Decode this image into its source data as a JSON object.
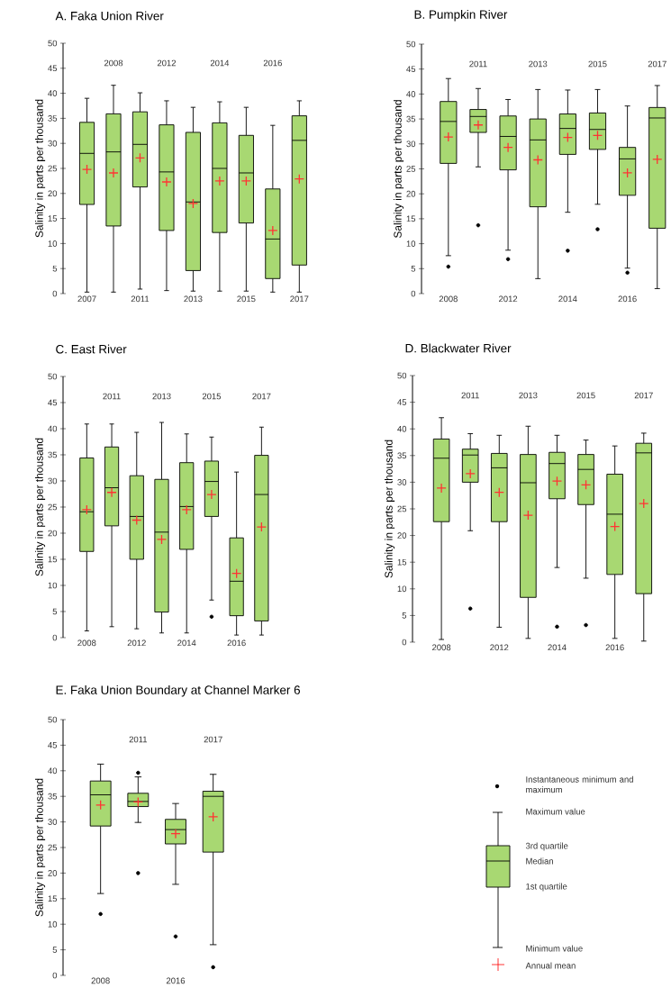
{
  "chart_data": [
    {
      "type": "box",
      "title": "A. Faka Union River",
      "ylabel": "Salinity in parts per thousand",
      "categories": [
        "2007",
        "2008",
        "2011",
        "2012",
        "2013",
        "2014",
        "2015",
        "2016",
        "2017"
      ],
      "ylim": [
        0,
        50
      ],
      "yticks": [
        0,
        5,
        10,
        15,
        20,
        25,
        30,
        35,
        40,
        45,
        50
      ],
      "series": [
        {
          "type": "box",
          "color": "#a8d872",
          "boxes": [
            {
              "low": 0.3,
              "q1": 17.8,
              "median": 28.0,
              "q3": 34.2,
              "high": 39.0,
              "mean": 24.8
            },
            {
              "low": 0.3,
              "q1": 13.5,
              "median": 28.3,
              "q3": 35.9,
              "high": 41.6,
              "mean": 24.1
            },
            {
              "low": 0.9,
              "q1": 21.3,
              "median": 29.8,
              "q3": 36.3,
              "high": 40.1,
              "mean": 27.1
            },
            {
              "low": 0.6,
              "q1": 12.6,
              "median": 24.3,
              "q3": 33.7,
              "high": 38.5,
              "mean": 22.3
            },
            {
              "low": 0.5,
              "q1": 4.6,
              "median": 18.3,
              "q3": 32.2,
              "high": 37.2,
              "mean": 18.0
            },
            {
              "low": 0.5,
              "q1": 12.2,
              "median": 25.0,
              "q3": 34.1,
              "high": 38.3,
              "mean": 22.5
            },
            {
              "low": 0.5,
              "q1": 14.1,
              "median": 24.1,
              "q3": 31.6,
              "high": 37.2,
              "mean": 22.5
            },
            {
              "low": 0.3,
              "q1": 3.0,
              "median": 10.9,
              "q3": 20.9,
              "high": 33.6,
              "mean": 12.6
            },
            {
              "low": 0.3,
              "q1": 5.7,
              "median": 30.6,
              "q3": 35.5,
              "high": 38.5,
              "mean": 22.9
            }
          ]
        }
      ]
    },
    {
      "type": "box",
      "title": "B. Pumpkin River",
      "ylabel": "Salinity in parts per thousand",
      "categories": [
        "2008",
        "2011",
        "2012",
        "2013",
        "2014",
        "2015",
        "2016",
        "2017"
      ],
      "ylim": [
        0,
        50
      ],
      "yticks": [
        0,
        5,
        10,
        15,
        20,
        25,
        30,
        35,
        40,
        45,
        50
      ],
      "series": [
        {
          "type": "box",
          "color": "#a8d872",
          "boxes": [
            {
              "low": 7.6,
              "q1": 26.1,
              "median": 34.5,
              "q3": 38.5,
              "high": 43.1,
              "mean": 31.4,
              "outliers": [
                5.4
              ]
            },
            {
              "low": 25.4,
              "q1": 32.3,
              "median": 35.5,
              "q3": 36.9,
              "high": 41.1,
              "mean": 33.8,
              "outliers": [
                13.7
              ]
            },
            {
              "low": 8.7,
              "q1": 24.8,
              "median": 31.5,
              "q3": 35.6,
              "high": 38.9,
              "mean": 29.3,
              "outliers": [
                6.9
              ]
            },
            {
              "low": 3.0,
              "q1": 17.4,
              "median": 30.8,
              "q3": 35.0,
              "high": 40.9,
              "mean": 26.8
            },
            {
              "low": 16.3,
              "q1": 27.9,
              "median": 33.1,
              "q3": 36.0,
              "high": 40.8,
              "mean": 31.3,
              "outliers": [
                8.6
              ]
            },
            {
              "low": 17.9,
              "q1": 28.9,
              "median": 32.9,
              "q3": 36.2,
              "high": 40.9,
              "mean": 31.7,
              "outliers": [
                12.9
              ]
            },
            {
              "low": 5.1,
              "q1": 19.7,
              "median": 27.0,
              "q3": 29.3,
              "high": 37.6,
              "mean": 24.2,
              "outliers": [
                4.2
              ]
            },
            {
              "low": 1.0,
              "q1": 13.1,
              "median": 35.2,
              "q3": 37.3,
              "high": 41.7,
              "mean": 26.9
            }
          ]
        }
      ]
    },
    {
      "type": "box",
      "title": "C. East River",
      "ylabel": "Salinity in parts per thousand",
      "categories": [
        "2008",
        "2011",
        "2012",
        "2013",
        "2014",
        "2015",
        "2016",
        "2017"
      ],
      "ylim": [
        0,
        50
      ],
      "yticks": [
        0,
        5,
        10,
        15,
        20,
        25,
        30,
        35,
        40,
        45,
        50
      ],
      "series": [
        {
          "type": "box",
          "color": "#a8d872",
          "boxes": [
            {
              "low": 1.3,
              "q1": 16.5,
              "median": 24.1,
              "q3": 34.4,
              "high": 40.9,
              "mean": 24.5
            },
            {
              "low": 2.1,
              "q1": 21.4,
              "median": 28.7,
              "q3": 36.5,
              "high": 40.9,
              "mean": 27.8
            },
            {
              "low": 1.7,
              "q1": 15.0,
              "median": 23.2,
              "q3": 31.0,
              "high": 39.3,
              "mean": 22.5
            },
            {
              "low": 0.9,
              "q1": 4.9,
              "median": 20.2,
              "q3": 30.3,
              "high": 41.2,
              "mean": 18.8
            },
            {
              "low": 0.9,
              "q1": 16.9,
              "median": 25.1,
              "q3": 33.5,
              "high": 39.0,
              "mean": 24.5
            },
            {
              "low": 7.2,
              "q1": 23.2,
              "median": 29.9,
              "q3": 33.8,
              "high": 38.4,
              "mean": 27.4,
              "outliers": [
                4.0
              ]
            },
            {
              "low": 0.5,
              "q1": 4.2,
              "median": 10.8,
              "q3": 19.1,
              "high": 31.7,
              "mean": 12.3
            },
            {
              "low": 0.5,
              "q1": 3.2,
              "median": 27.4,
              "q3": 34.9,
              "high": 40.3,
              "mean": 21.2
            }
          ]
        }
      ]
    },
    {
      "type": "box",
      "title": "D. Blackwater River",
      "ylabel": "Salinity in parts per thousand",
      "categories": [
        "2008",
        "2011",
        "2012",
        "2013",
        "2014",
        "2015",
        "2016",
        "2017"
      ],
      "ylim": [
        0,
        50
      ],
      "yticks": [
        0,
        5,
        10,
        15,
        20,
        25,
        30,
        35,
        40,
        45,
        50
      ],
      "series": [
        {
          "type": "box",
          "color": "#a8d872",
          "boxes": [
            {
              "low": 0.5,
              "q1": 22.6,
              "median": 34.5,
              "q3": 38.1,
              "high": 42.1,
              "mean": 28.9
            },
            {
              "low": 20.9,
              "q1": 30.0,
              "median": 35.1,
              "q3": 36.2,
              "high": 39.1,
              "mean": 31.6,
              "outliers": [
                6.3
              ]
            },
            {
              "low": 2.8,
              "q1": 22.6,
              "median": 32.7,
              "q3": 35.4,
              "high": 38.8,
              "mean": 28.1
            },
            {
              "low": 0.7,
              "q1": 8.4,
              "median": 29.9,
              "q3": 35.2,
              "high": 40.5,
              "mean": 23.8
            },
            {
              "low": 14.0,
              "q1": 26.9,
              "median": 33.5,
              "q3": 35.6,
              "high": 38.8,
              "mean": 30.2,
              "outliers": [
                2.9
              ]
            },
            {
              "low": 12.0,
              "q1": 25.8,
              "median": 32.4,
              "q3": 35.2,
              "high": 37.9,
              "mean": 29.5,
              "outliers": [
                3.2
              ]
            },
            {
              "low": 0.7,
              "q1": 12.7,
              "median": 24.0,
              "q3": 31.5,
              "high": 36.8,
              "mean": 21.7
            },
            {
              "low": 0.2,
              "q1": 9.1,
              "median": 35.5,
              "q3": 37.3,
              "high": 39.2,
              "mean": 26.0
            }
          ]
        }
      ]
    },
    {
      "type": "box",
      "title": "E. Faka Union Boundary at Channel Marker 6",
      "ylabel": "Salinity in parts per thousand",
      "categories": [
        "2008",
        "2011",
        "2016",
        "2017"
      ],
      "ylim": [
        0,
        50
      ],
      "yticks": [
        0,
        5,
        10,
        15,
        20,
        25,
        30,
        35,
        40,
        45,
        50
      ],
      "series": [
        {
          "type": "box",
          "color": "#a8d872",
          "boxes": [
            {
              "low": 16.0,
              "q1": 29.2,
              "median": 35.3,
              "q3": 38.0,
              "high": 41.3,
              "mean": 33.3,
              "outliers": [
                12.0
              ]
            },
            {
              "low": 29.9,
              "q1": 33.0,
              "median": 34.0,
              "q3": 35.6,
              "high": 38.8,
              "mean": 33.9,
              "outliers": [
                20.0,
                39.6
              ]
            },
            {
              "low": 17.8,
              "q1": 25.7,
              "median": 28.5,
              "q3": 30.5,
              "high": 33.6,
              "mean": 27.7,
              "outliers": [
                7.6
              ]
            },
            {
              "low": 6.0,
              "q1": 24.1,
              "median": 35.0,
              "q3": 36.0,
              "high": 39.3,
              "mean": 31.0,
              "outliers": [
                1.6
              ]
            }
          ]
        }
      ]
    },
    {
      "type": "other",
      "annotations": [
        "Instantaneous minimum and maximum",
        "Maximum value",
        "3rd quartile",
        "Median",
        "1st quartile",
        "Minimum value",
        "Annual mean"
      ]
    }
  ]
}
